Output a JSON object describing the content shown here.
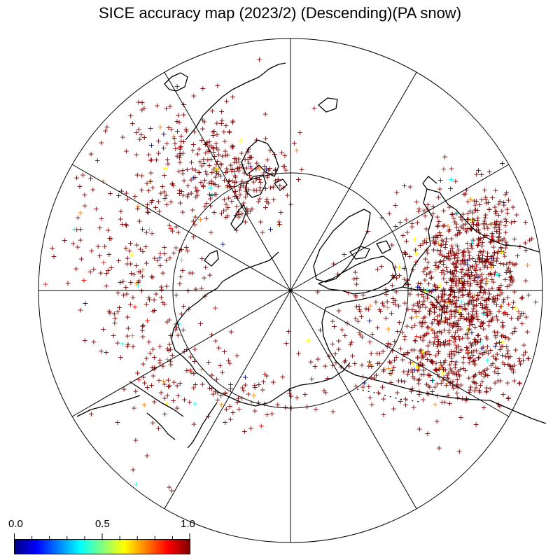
{
  "title": "SICE accuracy map (2023/2) (Descending)(PA snow)",
  "map": {
    "projection": "north-polar-stereographic",
    "graticule": {
      "meridian_step_deg": 30,
      "parallel_circles": 2
    },
    "colors": {
      "dominant_marker": "#8b0000",
      "coastline": "#000000",
      "grid": "#000000"
    },
    "marker_symbol": "+",
    "marker_value_distribution": [
      {
        "value": 1.0,
        "share": 0.93
      },
      {
        "value": 0.9,
        "share": 0.02
      },
      {
        "value": 0.75,
        "share": 0.015
      },
      {
        "value": 0.6,
        "share": 0.01
      },
      {
        "value": 0.4,
        "share": 0.01
      },
      {
        "value": 0.0,
        "share": 0.015
      }
    ]
  },
  "colorbar": {
    "min_label": "0.0",
    "mid_label": "0.5",
    "max_label": "1.0",
    "colormap": "jet",
    "stops": [
      "#00007f",
      "#0000ff",
      "#0080ff",
      "#00ffff",
      "#80ff80",
      "#ffff00",
      "#ff8000",
      "#ff0000",
      "#7f0000"
    ]
  }
}
